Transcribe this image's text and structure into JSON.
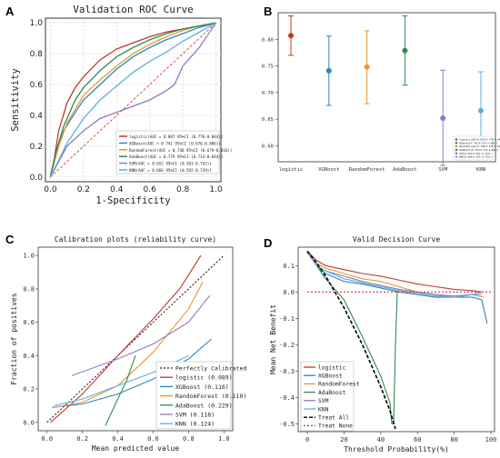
{
  "panels": {
    "A": {
      "label": "A",
      "title": "Validation ROC Curve",
      "xlabel": "1-Specificity",
      "ylabel": "Sensitivity",
      "xticks": [
        "0.0",
        "0.2",
        "0.4",
        "0.6",
        "0.8",
        "1.0"
      ],
      "yticks": [
        "0.0",
        "0.2",
        "0.4",
        "0.6",
        "0.8",
        "1.0"
      ],
      "legend": [
        "logistic(AUC = 0.807 95%CI (0.770-0.844))",
        "XGBoost(AUC = 0.741 95%CI (0.676-0.806))",
        "RandomForest(AUC = 0.748 95%CI (0.679-0.816))",
        "AdaBoost(AUC = 0.779 95%CI (0.714-0.844))",
        "SVM(AUC = 0.652 95%CI (0.563-0.742))",
        "KNN(AUC = 0.666 95%CI (0.592-0.739))"
      ]
    },
    "B": {
      "label": "B",
      "yticks": [
        "0.60",
        "0.65",
        "0.70",
        "0.75",
        "0.80"
      ],
      "legend": [
        "logistic(AUC=0.807(0.770-0.844))",
        "XGBoost(0.741(0.676-0.806))",
        "RandomForest(0.748(0.679-0.816))",
        "AdaBoost(0.779(0.714-0.844))",
        "SVM(0.652(0.563-0.742))",
        "KNN(0.666(0.592-0.739))"
      ]
    },
    "C": {
      "label": "C",
      "title": "Calibration plots  (reliability curve)",
      "xlabel": "Mean predicted value",
      "ylabel": "Fraction of positives",
      "xticks": [
        "0.0",
        "0.2",
        "0.4",
        "0.6",
        "0.8",
        "1.0"
      ],
      "yticks": [
        "0.0",
        "0.2",
        "0.4",
        "0.6",
        "0.8",
        "1.0"
      ],
      "legend": [
        "Perfectly Calibrated",
        "logistic (0.089)",
        "XGBoost (0.116)",
        "RandomForest (0.110)",
        "AdaBoost (0.229)",
        "SVM (0.118)",
        "KNN (0.124)"
      ]
    },
    "D": {
      "label": "D",
      "title": "Valid Decision Curve",
      "xlabel": "Threshold Probability(%)",
      "ylabel": "Mean Net Benefit",
      "xticks": [
        "0",
        "20",
        "40",
        "60",
        "80",
        "100"
      ],
      "yticks": [
        "0.1",
        "0.0",
        "-0.1",
        "-0.2",
        "-0.3",
        "-0.4",
        "-0.5"
      ],
      "legend": [
        "logistic",
        "XGBoost",
        "RandomForest",
        "AdaBoost",
        "SVM",
        "KNN",
        "Treat All",
        "Treat None"
      ]
    }
  },
  "colors": {
    "logistic": "#c0392b",
    "XGBoost": "#2e86c1",
    "RandomForest": "#e59a2f",
    "AdaBoost": "#2e8b57",
    "SVM": "#8e7cc3",
    "KNN": "#5dade2",
    "diag": "#d9534f",
    "treatAll": "#000000",
    "treatNone": "#c0392b"
  },
  "chart_data": [
    {
      "panel": "A",
      "type": "line",
      "title": "Validation ROC Curve",
      "xlabel": "1-Specificity",
      "ylabel": "Sensitivity",
      "xlim": [
        0,
        1
      ],
      "ylim": [
        0,
        1
      ],
      "series": [
        {
          "name": "logistic",
          "x": [
            0,
            0.02,
            0.05,
            0.1,
            0.15,
            0.2,
            0.3,
            0.4,
            0.5,
            0.6,
            0.7,
            0.8,
            0.9,
            1.0
          ],
          "y": [
            0,
            0.1,
            0.3,
            0.48,
            0.58,
            0.65,
            0.76,
            0.83,
            0.87,
            0.91,
            0.94,
            0.96,
            0.98,
            1.0
          ]
        },
        {
          "name": "XGBoost",
          "x": [
            0,
            0.03,
            0.08,
            0.15,
            0.2,
            0.3,
            0.4,
            0.5,
            0.6,
            0.7,
            0.8,
            0.9,
            1.0
          ],
          "y": [
            0,
            0.15,
            0.3,
            0.42,
            0.5,
            0.6,
            0.7,
            0.78,
            0.84,
            0.89,
            0.93,
            0.97,
            1.0
          ]
        },
        {
          "name": "RandomForest",
          "x": [
            0,
            0.05,
            0.1,
            0.2,
            0.3,
            0.4,
            0.5,
            0.6,
            0.7,
            0.8,
            0.9,
            1.0
          ],
          "y": [
            0,
            0.2,
            0.35,
            0.53,
            0.63,
            0.72,
            0.8,
            0.86,
            0.91,
            0.95,
            0.98,
            1.0
          ]
        },
        {
          "name": "AdaBoost",
          "x": [
            0,
            0.03,
            0.08,
            0.15,
            0.2,
            0.3,
            0.4,
            0.5,
            0.6,
            0.7,
            0.8,
            0.9,
            1.0
          ],
          "y": [
            0,
            0.15,
            0.33,
            0.5,
            0.58,
            0.69,
            0.78,
            0.84,
            0.89,
            0.93,
            0.96,
            0.98,
            1.0
          ]
        },
        {
          "name": "SVM",
          "x": [
            0,
            0.1,
            0.2,
            0.3,
            0.4,
            0.5,
            0.6,
            0.7,
            0.75,
            0.8,
            0.9,
            0.95,
            1.0
          ],
          "y": [
            0,
            0.2,
            0.3,
            0.38,
            0.42,
            0.46,
            0.5,
            0.56,
            0.6,
            0.72,
            0.84,
            0.92,
            1.0
          ]
        },
        {
          "name": "KNN",
          "x": [
            0,
            0.1,
            0.2,
            0.3,
            0.4,
            0.5,
            0.6,
            0.7,
            0.8,
            0.9,
            1.0
          ],
          "y": [
            0,
            0.22,
            0.38,
            0.5,
            0.59,
            0.68,
            0.75,
            0.81,
            0.88,
            0.94,
            1.0
          ]
        }
      ],
      "reference_line": {
        "x": [
          0,
          1
        ],
        "y": [
          0,
          1
        ]
      }
    },
    {
      "panel": "B",
      "type": "scatter",
      "categories": [
        "logistic",
        "XGBoost",
        "RandomForest",
        "AdaBoost",
        "SVM",
        "KNN"
      ],
      "values": [
        0.807,
        0.741,
        0.748,
        0.779,
        0.652,
        0.666
      ],
      "lower": [
        0.77,
        0.676,
        0.679,
        0.714,
        0.563,
        0.592
      ],
      "upper": [
        0.844,
        0.806,
        0.816,
        0.844,
        0.742,
        0.739
      ],
      "ylim": [
        0.57,
        0.85
      ]
    },
    {
      "panel": "C",
      "type": "line",
      "title": "Calibration plots  (reliability curve)",
      "xlabel": "Mean predicted value",
      "ylabel": "Fraction of positives",
      "xlim": [
        -0.05,
        1.05
      ],
      "ylim": [
        -0.05,
        1.05
      ],
      "series": [
        {
          "name": "Perfectly Calibrated",
          "x": [
            0,
            1
          ],
          "y": [
            0,
            1
          ]
        },
        {
          "name": "logistic (0.089)",
          "x": [
            0.02,
            0.2,
            0.4,
            0.6,
            0.75,
            0.87
          ],
          "y": [
            0.0,
            0.17,
            0.4,
            0.62,
            0.8,
            1.0
          ]
        },
        {
          "name": "XGBoost (0.116)",
          "x": [
            0.03,
            0.2,
            0.4,
            0.6,
            0.8,
            0.93
          ],
          "y": [
            0.09,
            0.11,
            0.17,
            0.26,
            0.38,
            0.5
          ]
        },
        {
          "name": "RandomForest (0.110)",
          "x": [
            0.04,
            0.2,
            0.4,
            0.6,
            0.8,
            0.88
          ],
          "y": [
            0.09,
            0.12,
            0.22,
            0.42,
            0.68,
            0.84
          ]
        },
        {
          "name": "AdaBoost (0.229)",
          "x": [
            0.33,
            0.4,
            0.45,
            0.5
          ],
          "y": [
            -0.02,
            0.14,
            0.25,
            0.4
          ]
        },
        {
          "name": "SVM (0.118)",
          "x": [
            0.14,
            0.4,
            0.6,
            0.8,
            0.92
          ],
          "y": [
            0.28,
            0.38,
            0.47,
            0.6,
            0.76
          ]
        },
        {
          "name": "KNN (0.124)",
          "x": [
            0.04,
            0.2,
            0.4,
            0.6,
            0.8
          ],
          "y": [
            0.1,
            0.14,
            0.22,
            0.3,
            0.4
          ]
        }
      ]
    },
    {
      "panel": "D",
      "type": "line",
      "title": "Valid Decision Curve",
      "xlabel": "Threshold Probability(%)",
      "ylabel": "Mean Net Benefit",
      "xlim": [
        -5,
        102
      ],
      "ylim": [
        -0.53,
        0.17
      ],
      "series": [
        {
          "name": "logistic",
          "x": [
            0,
            5,
            10,
            20,
            30,
            40,
            50,
            60,
            70,
            80,
            90,
            95
          ],
          "y": [
            0.155,
            0.12,
            0.1,
            0.085,
            0.07,
            0.06,
            0.045,
            0.03,
            0.02,
            0.01,
            0.005,
            0.0
          ]
        },
        {
          "name": "XGBoost",
          "x": [
            0,
            5,
            10,
            20,
            30,
            40,
            50,
            60,
            70,
            80,
            90,
            95,
            98
          ],
          "y": [
            0.15,
            0.1,
            0.07,
            0.04,
            0.03,
            0.015,
            0.0,
            -0.01,
            -0.02,
            -0.02,
            -0.02,
            -0.03,
            -0.12
          ]
        },
        {
          "name": "RandomForest",
          "x": [
            0,
            5,
            10,
            20,
            30,
            40,
            50,
            60,
            70,
            80,
            90,
            96
          ],
          "y": [
            0.15,
            0.11,
            0.09,
            0.07,
            0.05,
            0.04,
            0.02,
            0.0,
            -0.01,
            -0.02,
            -0.01,
            -0.02
          ]
        },
        {
          "name": "AdaBoost",
          "x": [
            0,
            10,
            20,
            30,
            40,
            45,
            46,
            47,
            48,
            49,
            50
          ],
          "y": [
            0.15,
            0.05,
            -0.03,
            -0.17,
            -0.32,
            -0.42,
            -0.5,
            -0.5,
            -0.2,
            0.0,
            0.0
          ]
        },
        {
          "name": "SVM",
          "x": [
            0,
            5,
            10,
            20,
            30,
            40,
            50,
            60,
            70,
            80,
            90,
            95
          ],
          "y": [
            0.15,
            0.1,
            0.08,
            0.06,
            0.04,
            0.025,
            0.01,
            0.0,
            -0.01,
            -0.015,
            -0.01,
            0.0
          ]
        },
        {
          "name": "KNN",
          "x": [
            0,
            5,
            10,
            20,
            30,
            40,
            50,
            60,
            70,
            80,
            90,
            95
          ],
          "y": [
            0.15,
            0.1,
            0.08,
            0.05,
            0.035,
            0.02,
            0.005,
            -0.005,
            -0.015,
            -0.02,
            -0.01,
            -0.01
          ]
        },
        {
          "name": "Treat All",
          "x": [
            0,
            5,
            10,
            15,
            20,
            25,
            30,
            35,
            40,
            45,
            48
          ],
          "y": [
            0.155,
            0.11,
            0.06,
            0.0,
            -0.06,
            -0.13,
            -0.2,
            -0.28,
            -0.36,
            -0.45,
            -0.52
          ]
        },
        {
          "name": "Treat None",
          "x": [
            0,
            100
          ],
          "y": [
            0,
            0
          ]
        }
      ]
    }
  ]
}
